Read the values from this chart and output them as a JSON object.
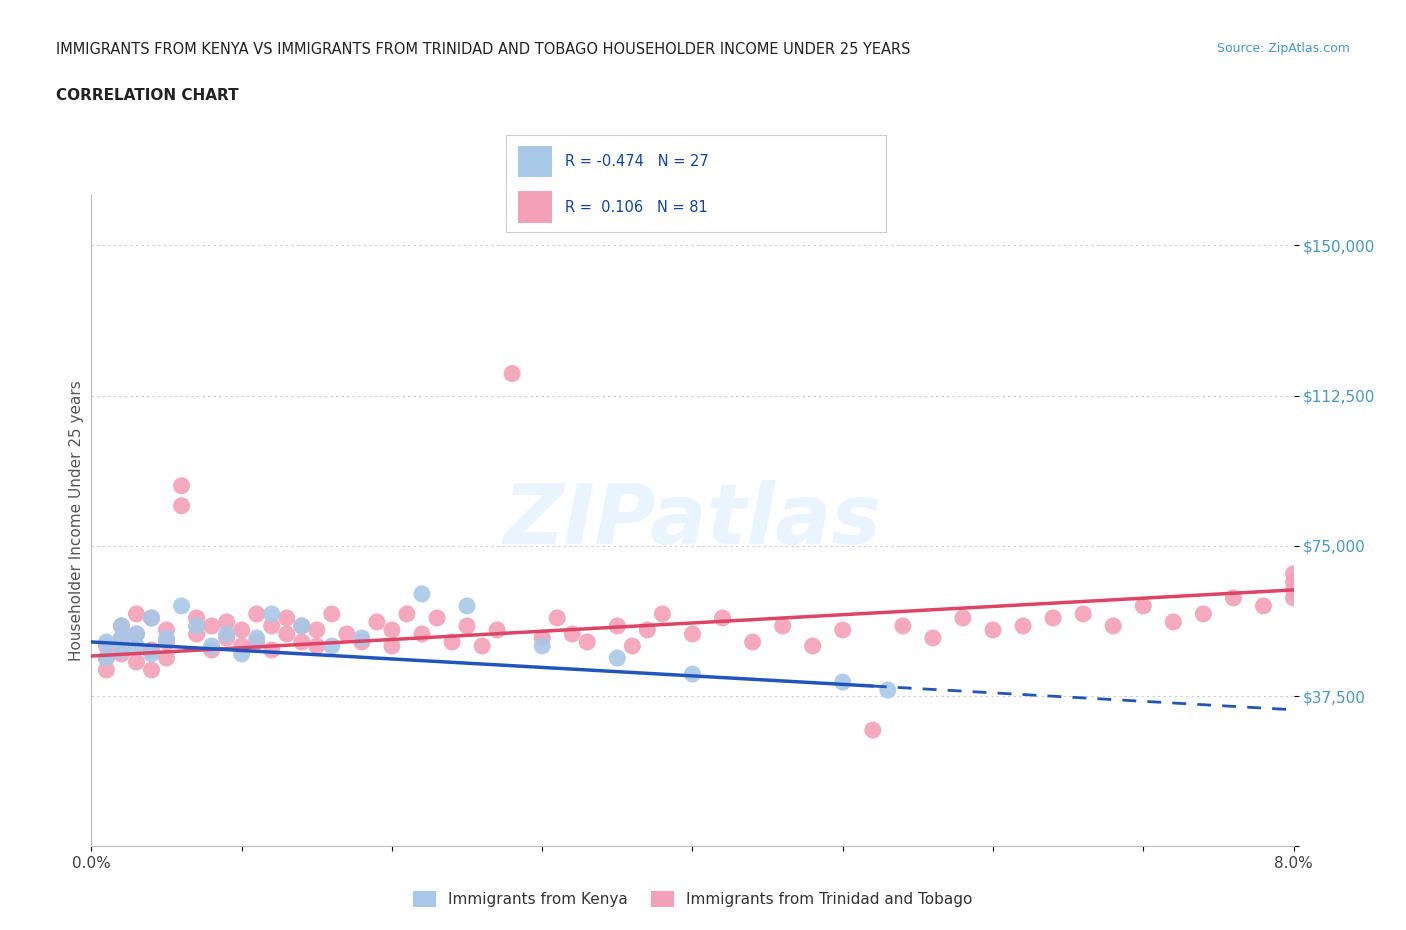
{
  "title_line1": "IMMIGRANTS FROM KENYA VS IMMIGRANTS FROM TRINIDAD AND TOBAGO HOUSEHOLDER INCOME UNDER 25 YEARS",
  "title_line2": "CORRELATION CHART",
  "source_text": "Source: ZipAtlas.com",
  "ylabel": "Householder Income Under 25 years",
  "xlim": [
    0.0,
    0.08
  ],
  "ylim": [
    0,
    162500
  ],
  "kenya_color": "#a8c8e8",
  "tt_color": "#f4a0b8",
  "kenya_line_color": "#2255bb",
  "tt_line_color": "#dd4466",
  "background_color": "#ffffff",
  "grid_color": "#cccccc",
  "watermark_text": "ZIPatlas",
  "legend_kenya_label": "Immigrants from Kenya",
  "legend_tt_label": "Immigrants from Trinidad and Tobago",
  "kenya_R": -0.474,
  "kenya_N": 27,
  "tt_R": 0.106,
  "tt_N": 81,
  "kenya_x": [
    0.001,
    0.001,
    0.002,
    0.002,
    0.002,
    0.003,
    0.003,
    0.004,
    0.004,
    0.005,
    0.006,
    0.007,
    0.008,
    0.009,
    0.01,
    0.011,
    0.012,
    0.014,
    0.016,
    0.018,
    0.022,
    0.025,
    0.03,
    0.035,
    0.04,
    0.05,
    0.053
  ],
  "kenya_y": [
    51000,
    47000,
    52000,
    49000,
    55000,
    50000,
    53000,
    48000,
    57000,
    52000,
    60000,
    55000,
    50000,
    53000,
    48000,
    52000,
    58000,
    55000,
    50000,
    52000,
    63000,
    60000,
    50000,
    47000,
    43000,
    41000,
    39000
  ],
  "tt_x": [
    0.001,
    0.001,
    0.001,
    0.002,
    0.002,
    0.002,
    0.003,
    0.003,
    0.003,
    0.004,
    0.004,
    0.004,
    0.005,
    0.005,
    0.005,
    0.006,
    0.006,
    0.007,
    0.007,
    0.008,
    0.008,
    0.009,
    0.009,
    0.01,
    0.01,
    0.011,
    0.011,
    0.012,
    0.012,
    0.013,
    0.013,
    0.014,
    0.014,
    0.015,
    0.015,
    0.016,
    0.017,
    0.018,
    0.019,
    0.02,
    0.02,
    0.021,
    0.022,
    0.023,
    0.024,
    0.025,
    0.026,
    0.027,
    0.028,
    0.03,
    0.031,
    0.032,
    0.033,
    0.035,
    0.036,
    0.037,
    0.038,
    0.04,
    0.042,
    0.044,
    0.046,
    0.048,
    0.05,
    0.052,
    0.054,
    0.056,
    0.058,
    0.06,
    0.062,
    0.064,
    0.066,
    0.068,
    0.07,
    0.072,
    0.074,
    0.076,
    0.078,
    0.08,
    0.08,
    0.08,
    0.08
  ],
  "tt_y": [
    47000,
    50000,
    44000,
    52000,
    48000,
    55000,
    46000,
    53000,
    58000,
    49000,
    44000,
    57000,
    51000,
    47000,
    54000,
    90000,
    85000,
    53000,
    57000,
    49000,
    55000,
    52000,
    56000,
    50000,
    54000,
    58000,
    51000,
    55000,
    49000,
    53000,
    57000,
    51000,
    55000,
    50000,
    54000,
    58000,
    53000,
    51000,
    56000,
    54000,
    50000,
    58000,
    53000,
    57000,
    51000,
    55000,
    50000,
    54000,
    118000,
    52000,
    57000,
    53000,
    51000,
    55000,
    50000,
    54000,
    58000,
    53000,
    57000,
    51000,
    55000,
    50000,
    54000,
    29000,
    55000,
    52000,
    57000,
    54000,
    55000,
    57000,
    58000,
    55000,
    60000,
    56000,
    58000,
    62000,
    60000,
    64000,
    68000,
    62000,
    66000
  ]
}
